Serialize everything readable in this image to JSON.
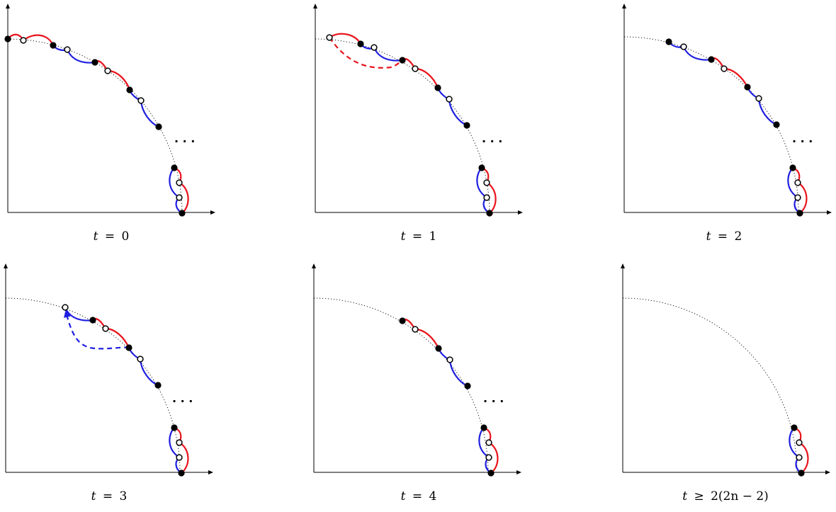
{
  "figure": {
    "colors": {
      "red": "#e8141c",
      "blue": "#1f1fe0",
      "axis": "#000000",
      "arc": "#000000"
    },
    "ellipsis": "· · ·",
    "panels": [
      {
        "id": "p0",
        "caption": {
          "var": "t",
          "rel": "=",
          "rhs": "0"
        }
      },
      {
        "id": "p1",
        "caption": {
          "var": "t",
          "rel": "=",
          "rhs": "1"
        }
      },
      {
        "id": "p2",
        "caption": {
          "var": "t",
          "rel": "=",
          "rhs": "2"
        }
      },
      {
        "id": "p3",
        "caption": {
          "var": "t",
          "rel": "=",
          "rhs": "3"
        }
      },
      {
        "id": "p4",
        "caption": {
          "var": "t",
          "rel": "=",
          "rhs": "4"
        }
      },
      {
        "id": "p5",
        "caption": {
          "var": "t",
          "rel": "≥",
          "rhs": "2(2n − 2)"
        }
      }
    ]
  }
}
